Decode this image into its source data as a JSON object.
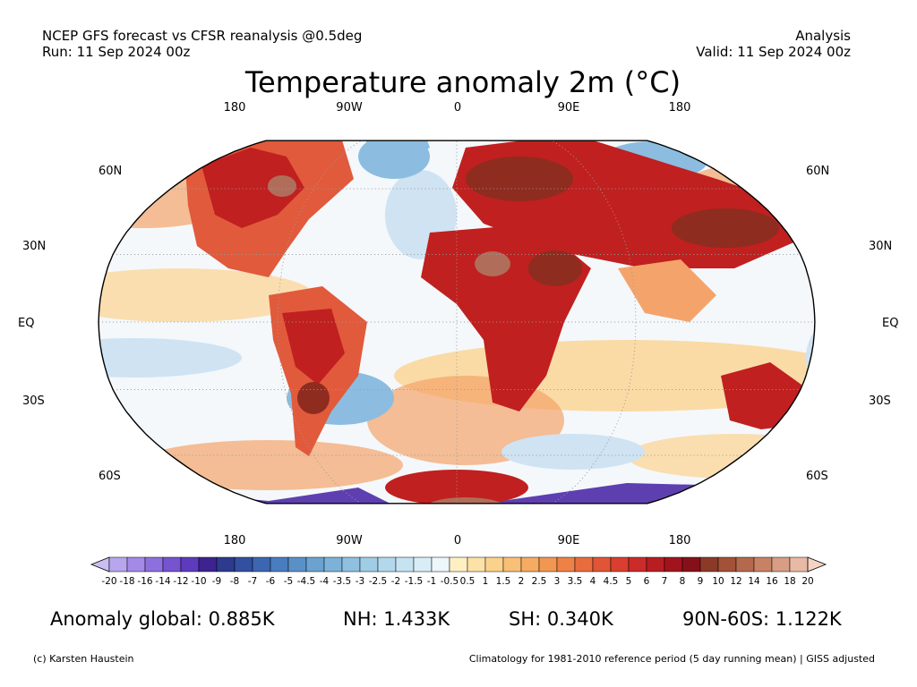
{
  "header": {
    "left_line1": "NCEP GFS forecast vs CFSR reanalysis @0.5deg",
    "left_line2": "Run: 11 Sep 2024 00z",
    "right_line1": "Analysis",
    "right_line2": "Valid: 11 Sep 2024 00z"
  },
  "title": "Temperature anomaly 2m (°C)",
  "map": {
    "projection": "Robinson",
    "lon_labels": [
      "180",
      "90W",
      "0",
      "90E",
      "180"
    ],
    "lat_labels": [
      "60N",
      "30N",
      "EQ",
      "30S",
      "60S"
    ],
    "colors": {
      "ocean_neutral": "#f4f8fb",
      "warm_light": "#fbd79c",
      "warm": "#f4a46a",
      "warm_strong": "#e15a3c",
      "hot": "#c0201f",
      "very_hot": "#8e2c1f",
      "extreme_hot": "#b06e5a",
      "cool_light": "#cfe3f3",
      "cool": "#8cbde0",
      "cold": "#4f7fc4",
      "very_cold": "#5e3fb0",
      "gridline": "#9a9a9a",
      "coastline": "#000000"
    }
  },
  "colorbar": {
    "labels": [
      "-20",
      "-18",
      "-16",
      "-14",
      "-12",
      "-10",
      "-9",
      "-8",
      "-7",
      "-6",
      "-5",
      "-4.5",
      "-4",
      "-3.5",
      "-3",
      "-2.5",
      "-2",
      "-1.5",
      "-1",
      "-0.5",
      "0.5",
      "1",
      "1.5",
      "2",
      "2.5",
      "3",
      "3.5",
      "4",
      "4.5",
      "5",
      "6",
      "7",
      "8",
      "9",
      "10",
      "12",
      "14",
      "16",
      "18",
      "20"
    ],
    "colors": [
      "#c9bdf3",
      "#b7a5ee",
      "#a28ae6",
      "#8d6fde",
      "#7653cf",
      "#5e3bbd",
      "#3d238f",
      "#2c3b8e",
      "#32509f",
      "#3c66b0",
      "#4a7dbe",
      "#5a90c8",
      "#6ba2d0",
      "#7db2d8",
      "#8fc0df",
      "#a1cce5",
      "#b3d8ec",
      "#c6e3f2",
      "#d9edf7",
      "#edf6fb",
      "#fff0c4",
      "#fde2a7",
      "#fbd28c",
      "#f8bf76",
      "#f5ab62",
      "#f29752",
      "#ee8246",
      "#e96c3d",
      "#e15536",
      "#d83f30",
      "#cb2b29",
      "#b81d22",
      "#a1141d",
      "#86101a",
      "#8c3a28",
      "#a15238",
      "#b4694e",
      "#c78266",
      "#d79d85",
      "#e8b9a5",
      "#f5d3c4"
    ]
  },
  "stats": {
    "global": "Anomaly global: 0.885K",
    "nh": "NH: 1.433K",
    "sh": "SH: 0.340K",
    "polar": "90N-60S: 1.122K"
  },
  "footer": {
    "left": "(c) Karsten Haustein",
    "right": "Climatology for 1981-2010 reference period (5 day running mean) | GISS adjusted"
  }
}
